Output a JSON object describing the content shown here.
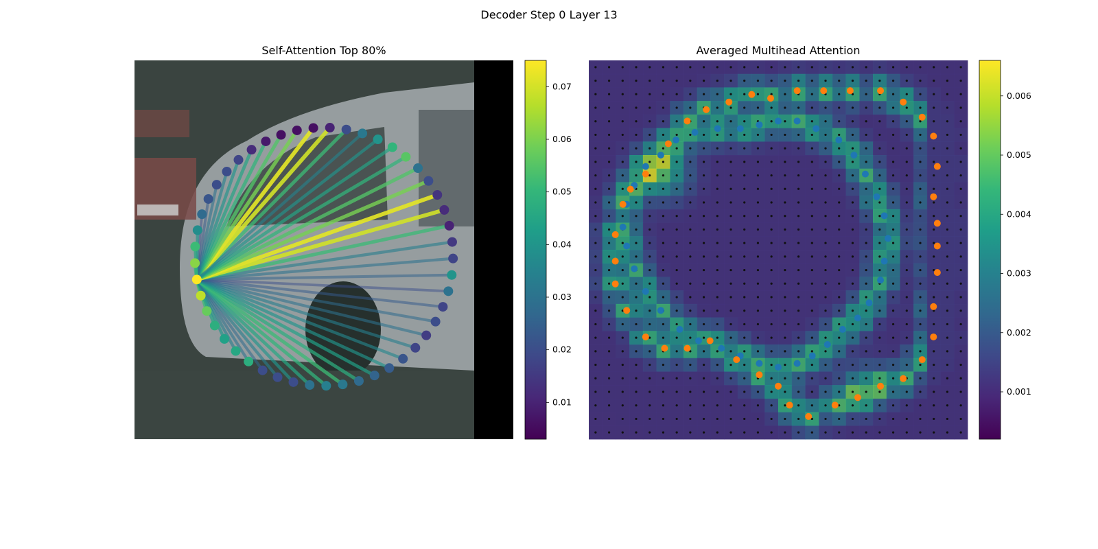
{
  "figure": {
    "title": "Decoder Step 0 Layer 13"
  },
  "colors": {
    "viridis": [
      "#440154",
      "#482878",
      "#3e4989",
      "#31688e",
      "#26828e",
      "#1f9e89",
      "#35b779",
      "#6ece58",
      "#b5de2b",
      "#fde725"
    ],
    "blue_points": "#1f77b4",
    "orange_points": "#ff7f0e",
    "grid_dots": "#111111",
    "background_image_dark": "#2f3a36"
  },
  "chart_data": [
    {
      "type": "scatter",
      "title": "Self-Attention Top 80%",
      "description_kind": "attention graph over image",
      "colorbar": {
        "ticks": [
          "0.01",
          "0.02",
          "0.03",
          "0.04",
          "0.05",
          "0.06",
          "0.07"
        ],
        "tick_values": [
          0.01,
          0.02,
          0.03,
          0.04,
          0.05,
          0.06,
          0.07
        ],
        "vmin": 0.003,
        "vmax": 0.075
      },
      "source_index": 15,
      "node_values": [
        0.02,
        0.01,
        0.006,
        0.006,
        0.006,
        0.008,
        0.012,
        0.018,
        0.02,
        0.02,
        0.022,
        0.028,
        0.038,
        0.052,
        0.062,
        0.075,
        0.068,
        0.058,
        0.048,
        0.044,
        0.046,
        0.048,
        0.02,
        0.02,
        0.02,
        0.03,
        0.034,
        0.032,
        0.028,
        0.026,
        0.024,
        0.022,
        0.018,
        0.016,
        0.02,
        0.018,
        0.03,
        0.04,
        0.018,
        0.015,
        0.01,
        0.012,
        0.014,
        0.02,
        0.03,
        0.056,
        0.05,
        0.04,
        0.032
      ],
      "edge_weights": [
        0.052,
        0.07,
        0.072,
        0.06,
        0.055,
        0.05,
        0.045,
        0.04,
        0.035,
        0.03,
        0.024,
        0.02,
        0.04,
        0.046,
        0.05,
        0.055,
        0.052,
        0.045,
        0.04,
        0.034,
        0.03,
        0.028,
        0.034,
        0.04,
        0.046,
        0.05,
        0.052,
        0.048,
        0.044,
        0.04,
        0.036,
        0.034,
        0.03,
        0.028,
        0.024,
        0.02,
        0.026,
        0.03,
        0.034
      ]
    },
    {
      "type": "heatmap",
      "title": "Averaged Multihead Attention",
      "colorbar": {
        "ticks": [
          "0.001",
          "0.002",
          "0.003",
          "0.004",
          "0.005",
          "0.006"
        ],
        "tick_values": [
          0.001,
          0.002,
          0.003,
          0.004,
          0.005,
          0.006
        ],
        "vmin": 0.0002,
        "vmax": 0.0066
      },
      "grid_size": 28,
      "series": [
        {
          "color": "blue",
          "points": [
            [
              0.4,
              0.18
            ],
            [
              0.45,
              0.17
            ],
            [
              0.5,
              0.16
            ],
            [
              0.55,
              0.16
            ],
            [
              0.6,
              0.18
            ],
            [
              0.66,
              0.21
            ],
            [
              0.7,
              0.25
            ],
            [
              0.73,
              0.3
            ],
            [
              0.76,
              0.36
            ],
            [
              0.78,
              0.41
            ],
            [
              0.79,
              0.47
            ],
            [
              0.78,
              0.53
            ],
            [
              0.77,
              0.58
            ],
            [
              0.74,
              0.64
            ],
            [
              0.71,
              0.68
            ],
            [
              0.67,
              0.71
            ],
            [
              0.63,
              0.75
            ],
            [
              0.59,
              0.78
            ],
            [
              0.55,
              0.8
            ],
            [
              0.5,
              0.81
            ],
            [
              0.45,
              0.8
            ],
            [
              0.4,
              0.78
            ],
            [
              0.35,
              0.76
            ],
            [
              0.29,
              0.74
            ],
            [
              0.24,
              0.71
            ],
            [
              0.19,
              0.66
            ],
            [
              0.15,
              0.61
            ],
            [
              0.12,
              0.55
            ],
            [
              0.1,
              0.49
            ],
            [
              0.09,
              0.44
            ],
            [
              0.1,
              0.38
            ],
            [
              0.12,
              0.33
            ],
            [
              0.15,
              0.28
            ],
            [
              0.19,
              0.25
            ],
            [
              0.23,
              0.21
            ],
            [
              0.28,
              0.19
            ],
            [
              0.34,
              0.18
            ]
          ]
        },
        {
          "color": "orange",
          "points": [
            [
              0.48,
              0.1
            ],
            [
              0.55,
              0.08
            ],
            [
              0.62,
              0.08
            ],
            [
              0.69,
              0.08
            ],
            [
              0.77,
              0.08
            ],
            [
              0.83,
              0.11
            ],
            [
              0.88,
              0.15
            ],
            [
              0.91,
              0.2
            ],
            [
              0.92,
              0.28
            ],
            [
              0.91,
              0.36
            ],
            [
              0.92,
              0.43
            ],
            [
              0.92,
              0.49
            ],
            [
              0.92,
              0.56
            ],
            [
              0.91,
              0.65
            ],
            [
              0.91,
              0.73
            ],
            [
              0.88,
              0.79
            ],
            [
              0.83,
              0.84
            ],
            [
              0.77,
              0.86
            ],
            [
              0.71,
              0.89
            ],
            [
              0.65,
              0.91
            ],
            [
              0.58,
              0.94
            ],
            [
              0.53,
              0.91
            ],
            [
              0.5,
              0.86
            ],
            [
              0.45,
              0.83
            ],
            [
              0.39,
              0.79
            ],
            [
              0.32,
              0.74
            ],
            [
              0.26,
              0.76
            ],
            [
              0.2,
              0.76
            ],
            [
              0.15,
              0.73
            ],
            [
              0.1,
              0.66
            ],
            [
              0.07,
              0.59
            ],
            [
              0.07,
              0.53
            ],
            [
              0.07,
              0.46
            ],
            [
              0.09,
              0.38
            ],
            [
              0.11,
              0.34
            ],
            [
              0.15,
              0.3
            ],
            [
              0.21,
              0.22
            ],
            [
              0.26,
              0.16
            ],
            [
              0.31,
              0.13
            ],
            [
              0.37,
              0.11
            ],
            [
              0.43,
              0.09
            ]
          ]
        }
      ]
    }
  ]
}
